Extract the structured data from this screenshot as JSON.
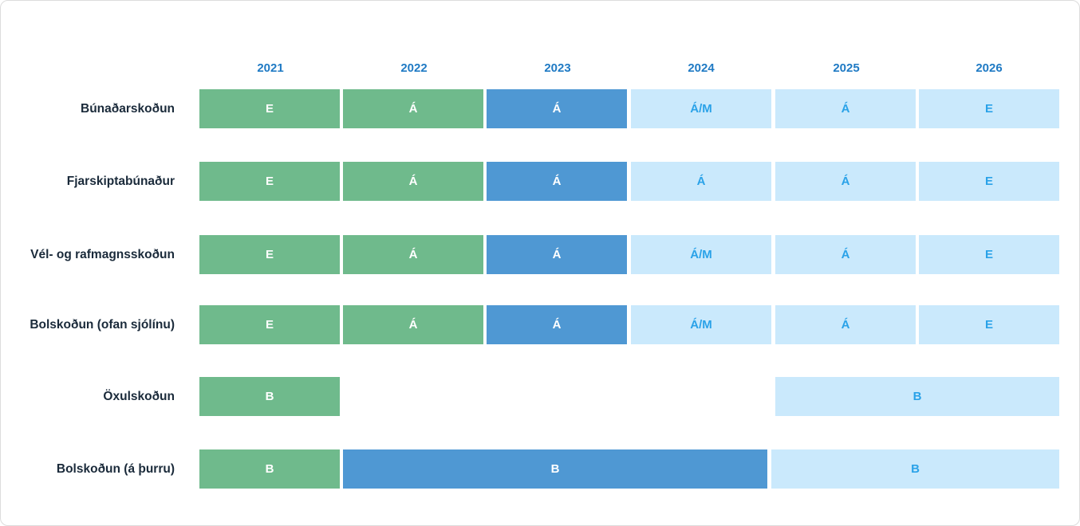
{
  "years": [
    "2021",
    "2022",
    "2023",
    "2024",
    "2025",
    "2026"
  ],
  "rows": [
    {
      "label": "Búnaðarskoðun",
      "cells": [
        "E",
        "Á",
        "Á",
        "Á/M",
        "Á",
        "E"
      ]
    },
    {
      "label": "Fjarskiptabúnaður",
      "cells": [
        "E",
        "Á",
        "Á",
        "Á",
        "Á",
        "E"
      ]
    },
    {
      "label": "Vél- og rafmagnsskoðun",
      "cells": [
        "E",
        "Á",
        "Á",
        "Á/M",
        "Á",
        "E"
      ]
    },
    {
      "label": "Bolskoðun (ofan sjólínu)",
      "cells": [
        "E",
        "Á",
        "Á",
        "Á/M",
        "Á",
        "E"
      ]
    },
    {
      "label": "Öxulskoðun",
      "cells": [
        "B",
        "B"
      ]
    },
    {
      "label": "Bolskoðun (á þurru)",
      "cells": [
        "B",
        "B",
        "B"
      ]
    }
  ],
  "colors": {
    "completed": "#6fba8c",
    "current": "#4f98d3",
    "upcoming": "#cae9fc",
    "upcoming_text": "#2aa2e8",
    "year_text": "#1f7ac4"
  }
}
